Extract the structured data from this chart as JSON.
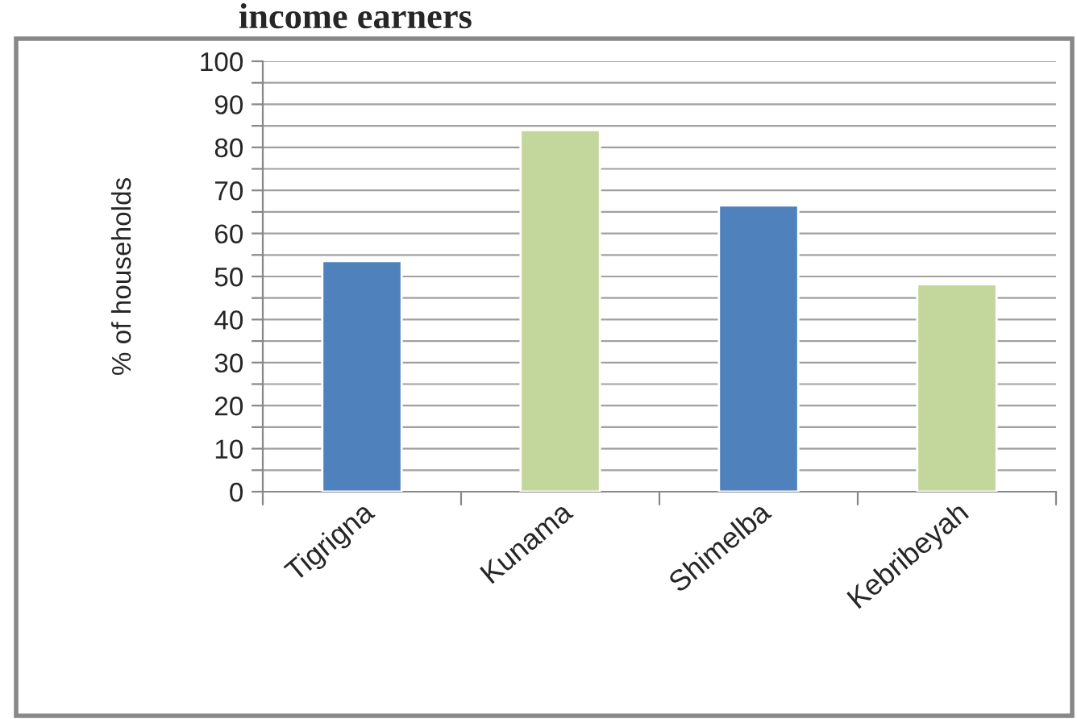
{
  "chart_data": {
    "type": "bar",
    "title": "income earners",
    "ylabel": "% of households",
    "categories": [
      "Tigrigna",
      "Kunama",
      "Shimelba",
      "Kebribeyah"
    ],
    "values": [
      53.6,
      84,
      66.5,
      48.2
    ],
    "colors": [
      "#4f81bd",
      "#c3d69b",
      "#4f81bd",
      "#c3d69b"
    ],
    "ylim": [
      0,
      100
    ],
    "yticks": [
      0,
      {
        "value": 5,
        "label": null
      },
      10,
      {
        "value": 15,
        "label": null
      },
      20,
      {
        "value": 25,
        "label": null
      },
      30,
      {
        "value": 35,
        "label": null
      },
      40,
      {
        "value": 45,
        "label": null
      },
      50,
      {
        "value": 55,
        "label": null
      },
      60,
      {
        "value": 65,
        "label": null
      },
      70,
      {
        "value": 75,
        "label": null
      },
      80,
      {
        "value": 85,
        "label": null
      },
      90,
      {
        "value": 95,
        "label": null
      },
      100
    ],
    "grid": "y"
  }
}
